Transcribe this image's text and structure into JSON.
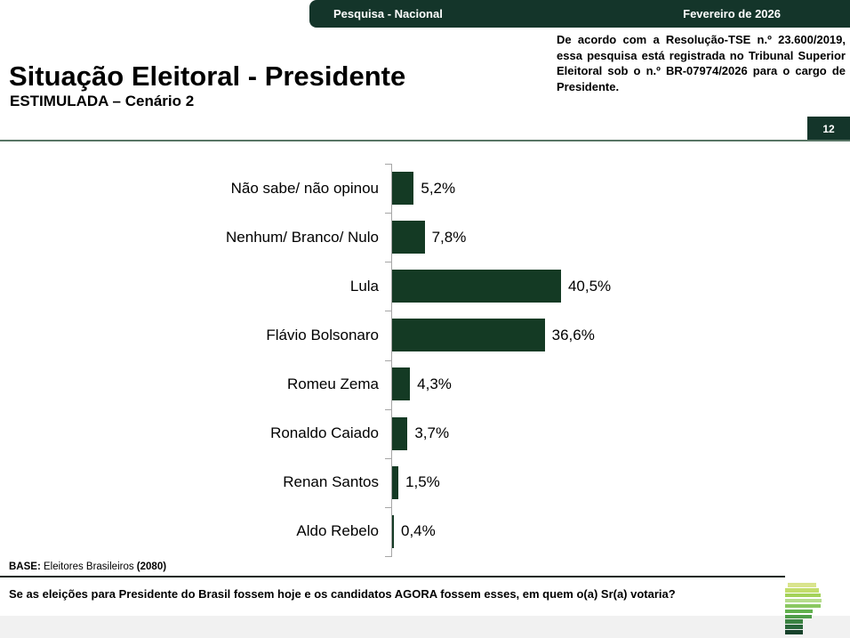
{
  "header": {
    "left_label": "Pesquisa - Nacional",
    "right_label": "Fevereiro de 2026"
  },
  "title": {
    "main": "Situação Eleitoral - Presidente",
    "subtitle": "ESTIMULADA – Cenário 2"
  },
  "tse_note": "De acordo com a Resolução-TSE n.º 23.600/2019, essa pesquisa está registrada no Tribunal Superior Eleitoral sob o n.º BR-07974/2026 para o cargo de Presidente.",
  "page_number": "12",
  "chart_data": {
    "type": "bar",
    "orientation": "horizontal",
    "title": "Situação Eleitoral - Presidente (ESTIMULADA – Cenário 2)",
    "categories": [
      "Não sabe/ não opinou",
      "Nenhum/ Branco/ Nulo",
      "Lula",
      "Flávio Bolsonaro",
      "Romeu Zema",
      "Ronaldo Caiado",
      "Renan Santos",
      "Aldo Rebelo"
    ],
    "values": [
      5.2,
      7.8,
      40.5,
      36.6,
      4.3,
      3.7,
      1.5,
      0.4
    ],
    "value_labels": [
      "5,2%",
      "7,8%",
      "40,5%",
      "36,6%",
      "4,3%",
      "3,7%",
      "1,5%",
      "0,4%"
    ],
    "bar_color": "#143a24",
    "axis_color": "#a6a6a6",
    "xlim": [
      0,
      43
    ],
    "grid": false,
    "legend": false
  },
  "base_note": {
    "prefix": "BASE:",
    "text": " Eleitores Brasileiros ",
    "count": "(2080)"
  },
  "footer": {
    "question": "Se as eleições para Presidente do Brasil fossem hoje e os candidatos AGORA fossem esses, em quem o(a) Sr(a) votaria?"
  },
  "logo": {
    "name": "parana-pesquisas-logo",
    "bars": [
      {
        "w": 32,
        "color": "#d9e48c",
        "indent": 3
      },
      {
        "w": 38,
        "color": "#c3dd6c",
        "indent": 0
      },
      {
        "w": 40,
        "color": "#a4d25a",
        "indent": 0
      },
      {
        "w": 41,
        "color": "#b6dd8c",
        "indent": 0
      },
      {
        "w": 40,
        "color": "#8ac861",
        "indent": 0
      },
      {
        "w": 31,
        "color": "#62b14e",
        "indent": 0
      },
      {
        "w": 30,
        "color": "#4f9d4a",
        "indent": 0
      },
      {
        "w": 20,
        "color": "#3b8342",
        "indent": 0
      },
      {
        "w": 20,
        "color": "#2a673b",
        "indent": 0
      },
      {
        "w": 20,
        "color": "#17422b",
        "indent": 0
      }
    ]
  },
  "colors": {
    "dark_green": "#14352a",
    "bar_green": "#143a24",
    "title_rule": "#587565",
    "footer_rule": "#16281c",
    "axis_gray": "#a6a6a6",
    "bottom_strip": "#f1f1f1"
  }
}
